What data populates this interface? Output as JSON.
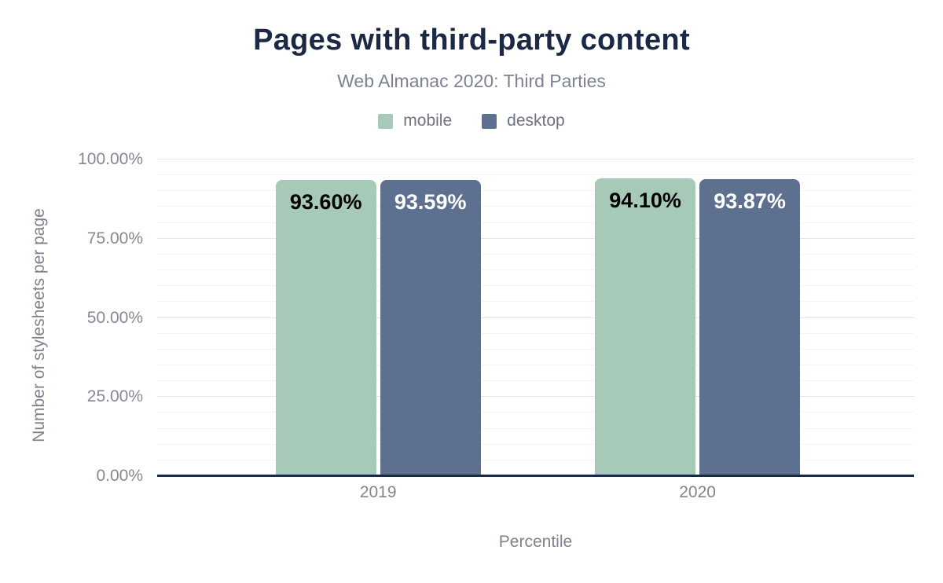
{
  "title": "Pages with third-party content",
  "subtitle": "Web Almanac 2020: Third Parties",
  "colors": {
    "title_text": "#1b2944",
    "muted_text": "#7c828e",
    "tick_text": "#848993",
    "axis_line": "#1b2a44",
    "grid_major": "#e4e5e8",
    "grid_minor": "#f3f4f6",
    "mobile": "#a7c9b8",
    "desktop": "#5e708f"
  },
  "chart_data": {
    "type": "bar",
    "title": "Pages with third-party content",
    "subtitle": "Web Almanac 2020: Third Parties",
    "categories": [
      "2019",
      "2020"
    ],
    "series": [
      {
        "name": "mobile",
        "color": "#a7c9b8",
        "label_color": "#000000",
        "values": [
          93.6,
          94.1
        ],
        "labels": [
          "93.60%",
          "94.10%"
        ]
      },
      {
        "name": "desktop",
        "color": "#5e708f",
        "label_color": "#ffffff",
        "values": [
          93.59,
          93.87
        ],
        "labels": [
          "93.59%",
          "93.87%"
        ]
      }
    ],
    "xlabel": "Percentile",
    "ylabel": "Number of stylesheets per page",
    "ylim": [
      0,
      100
    ],
    "yticks": [
      0,
      25,
      50,
      75,
      100
    ],
    "ytick_labels": [
      "0.00%",
      "25.00%",
      "50.00%",
      "75.00%",
      "100.00%"
    ],
    "grid": {
      "horizontal": true,
      "major_step": 25,
      "minor_step": 5,
      "vertical": false
    },
    "legend_position": "top",
    "value_labels": "inside-top"
  }
}
